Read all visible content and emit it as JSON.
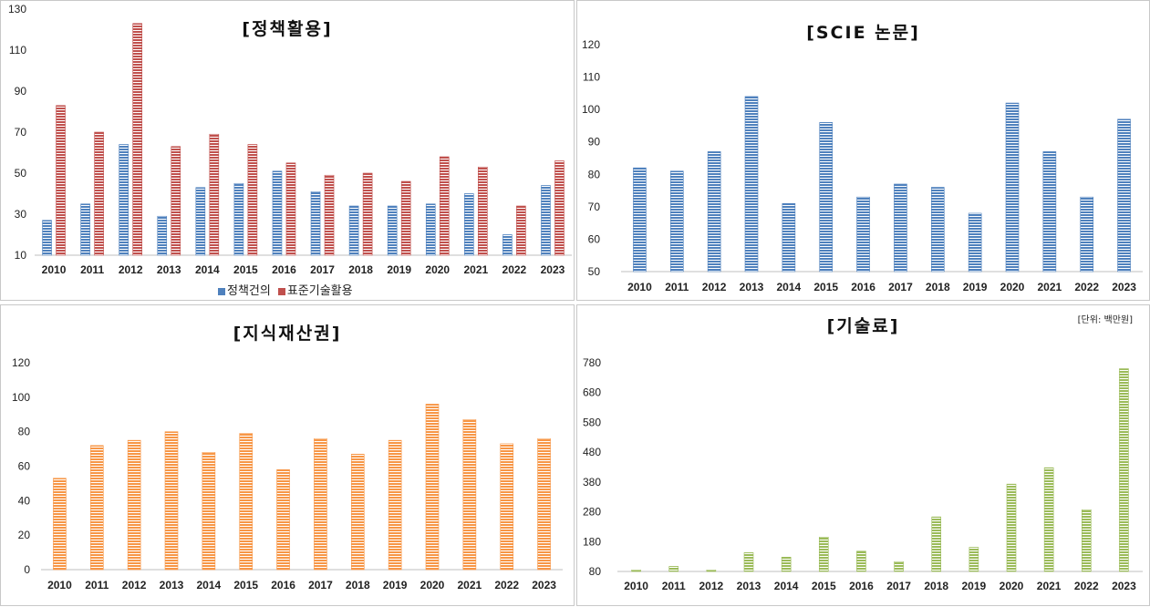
{
  "chart_data": [
    {
      "type": "bar",
      "title": "[정책활용]",
      "categories": [
        "2010",
        "2011",
        "2012",
        "2013",
        "2014",
        "2015",
        "2016",
        "2017",
        "2018",
        "2019",
        "2020",
        "2021",
        "2022",
        "2023"
      ],
      "series": [
        {
          "name": "정책건의",
          "color": "#4f81bd",
          "values": [
            27,
            35,
            64,
            29,
            43,
            45,
            51,
            41,
            34,
            34,
            35,
            40,
            20,
            44
          ]
        },
        {
          "name": "표준기술활용",
          "color": "#c0504d",
          "values": [
            83,
            70,
            123,
            63,
            69,
            64,
            55,
            49,
            50,
            46,
            58,
            53,
            34,
            56
          ]
        }
      ],
      "ylim": [
        10,
        130
      ],
      "yticks": [
        10,
        30,
        50,
        70,
        90,
        110,
        130
      ],
      "legend": "bottom"
    },
    {
      "type": "bar",
      "title": "[SCIE 논문]",
      "categories": [
        "2010",
        "2011",
        "2012",
        "2013",
        "2014",
        "2015",
        "2016",
        "2017",
        "2018",
        "2019",
        "2020",
        "2021",
        "2022",
        "2023"
      ],
      "series": [
        {
          "color": "#4f81bd",
          "values": [
            82,
            81,
            87,
            104,
            71,
            96,
            73,
            77,
            76,
            68,
            102,
            87,
            73,
            97
          ]
        }
      ],
      "ylim": [
        50,
        120
      ],
      "yticks": [
        50,
        60,
        70,
        80,
        90,
        100,
        110,
        120
      ]
    },
    {
      "type": "bar",
      "title": "[지식재산권]",
      "categories": [
        "2010",
        "2011",
        "2012",
        "2013",
        "2014",
        "2015",
        "2016",
        "2017",
        "2018",
        "2019",
        "2020",
        "2021",
        "2022",
        "2023"
      ],
      "series": [
        {
          "color": "#f79646",
          "values": [
            53,
            72,
            75,
            80,
            68,
            79,
            58,
            76,
            67,
            75,
            96,
            87,
            73,
            76
          ]
        }
      ],
      "ylim": [
        0,
        120
      ],
      "yticks": [
        0,
        20,
        40,
        60,
        80,
        100,
        120
      ]
    },
    {
      "type": "bar",
      "title": "[기술료]",
      "unit": "[단위: 백만원]",
      "categories": [
        "2010",
        "2011",
        "2012",
        "2013",
        "2014",
        "2015",
        "2016",
        "2017",
        "2018",
        "2019",
        "2020",
        "2021",
        "2022",
        "2023"
      ],
      "series": [
        {
          "color": "#9bbb59",
          "values": [
            85,
            97,
            85,
            143,
            128,
            195,
            148,
            113,
            263,
            161,
            373,
            428,
            287,
            760
          ]
        }
      ],
      "ylim": [
        80,
        780
      ],
      "yticks": [
        80,
        180,
        280,
        380,
        480,
        580,
        680,
        780
      ]
    }
  ]
}
